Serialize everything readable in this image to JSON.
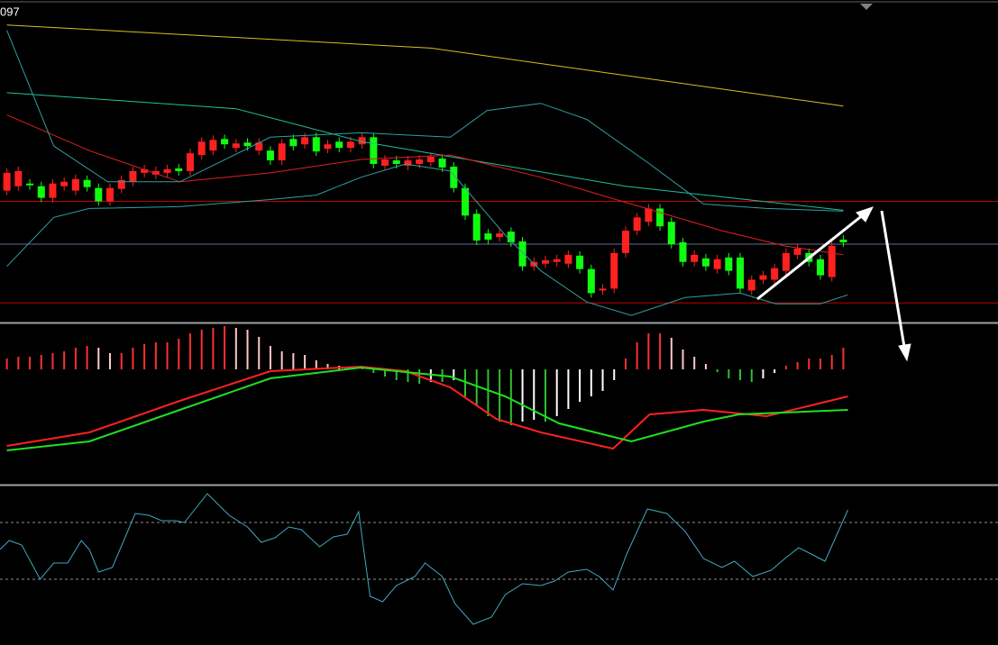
{
  "header": {
    "text": "097"
  },
  "chart_data": [
    {
      "type": "candlestick",
      "xlim": [
        -0.6,
        86.5
      ],
      "ylim": [
        43,
        400
      ],
      "up_color": "#ff2020",
      "down_color": "#10ff10",
      "open": [
        190,
        195,
        198,
        195,
        182,
        195,
        190,
        202,
        193,
        178,
        192,
        200,
        210,
        208,
        210,
        215,
        212,
        230,
        235,
        248,
        238,
        244,
        235,
        235,
        224,
        248,
        242,
        250,
        237,
        245,
        238,
        242,
        250,
        218,
        224,
        218,
        220,
        222,
        226,
        217,
        193,
        164,
        142,
        138,
        144,
        133,
        105,
        108,
        110,
        108,
        117,
        102,
        78,
        80,
        120,
        145,
        155,
        170,
        155,
        132,
        110,
        114,
        102,
        115,
        115,
        78,
        90,
        90,
        100,
        118,
        120,
        113,
        93,
        135
      ],
      "close": [
        210,
        212,
        196,
        182,
        198,
        200,
        203,
        194,
        178,
        193,
        202,
        212,
        214,
        212,
        214,
        212,
        232,
        245,
        247,
        242,
        243,
        240,
        244,
        224,
        243,
        240,
        250,
        234,
        242,
        238,
        245,
        250,
        220,
        225,
        220,
        224,
        225,
        228,
        216,
        193,
        162,
        134,
        135,
        142,
        132,
        105,
        110,
        112,
        113,
        118,
        102,
        75,
        80,
        120,
        145,
        160,
        170,
        150,
        130,
        110,
        118,
        105,
        113,
        100,
        80,
        90,
        95,
        103,
        120,
        125,
        110,
        95,
        128,
        132
      ],
      "high": [
        215,
        217,
        203,
        200,
        203,
        205,
        208,
        207,
        198,
        198,
        207,
        217,
        219,
        217,
        219,
        220,
        237,
        250,
        252,
        253,
        248,
        249,
        249,
        240,
        248,
        253,
        255,
        255,
        247,
        250,
        250,
        255,
        255,
        230,
        229,
        229,
        230,
        233,
        231,
        222,
        198,
        169,
        147,
        147,
        149,
        138,
        115,
        117,
        118,
        123,
        122,
        107,
        85,
        125,
        150,
        165,
        175,
        175,
        160,
        137,
        123,
        119,
        118,
        120,
        120,
        95,
        100,
        108,
        125,
        130,
        125,
        118,
        133,
        140
      ],
      "low": [
        185,
        190,
        191,
        177,
        177,
        190,
        185,
        189,
        173,
        173,
        187,
        195,
        205,
        203,
        205,
        207,
        207,
        225,
        230,
        237,
        233,
        235,
        230,
        219,
        219,
        235,
        237,
        229,
        232,
        233,
        233,
        237,
        215,
        213,
        215,
        213,
        215,
        217,
        211,
        188,
        157,
        129,
        130,
        133,
        127,
        100,
        100,
        103,
        105,
        103,
        97,
        70,
        73,
        75,
        115,
        140,
        150,
        145,
        125,
        105,
        105,
        100,
        97,
        95,
        75,
        73,
        85,
        85,
        95,
        113,
        105,
        90,
        88,
        127
      ],
      "series": [
        {
          "color": "#d8c020",
          "x": [
            0,
            37,
            73
          ],
          "values": [
            376,
            350,
            285
          ]
        },
        {
          "color": "#20c0a0",
          "x": [
            0,
            20,
            31,
            54,
            73
          ],
          "values": [
            300,
            282,
            245,
            195,
            168
          ]
        },
        {
          "color": "#e02020",
          "x": [
            0,
            7.2,
            15.1,
            23,
            30.9,
            38.7,
            46.6,
            54.5,
            62.4,
            67.9,
            73
          ],
          "values": [
            275,
            235,
            200,
            210,
            225,
            230,
            205,
            175,
            145,
            128,
            118
          ]
        },
        {
          "color": "#30a0a0",
          "x": [
            0,
            4.1,
            8.8,
            15.1,
            23,
            30.9,
            38.7,
            41.9,
            46.6,
            50.6,
            56.1,
            60.8,
            66.3,
            73
          ],
          "values": [
            370,
            240,
            200,
            200,
            250,
            255,
            250,
            280,
            288,
            270,
            220,
            175,
            170,
            167
          ]
        },
        {
          "color": "#30a0a0",
          "x": [
            0,
            4.1,
            7.2,
            15.1,
            23,
            27,
            30.9,
            34.8,
            38.7,
            43.5,
            46.6,
            50.6,
            54.5,
            59.2,
            64,
            67.1,
            71,
            73.4
          ],
          "values": [
            105,
            160,
            170,
            172,
            180,
            185,
            205,
            220,
            212,
            140,
            100,
            65,
            50,
            70,
            75,
            63,
            63,
            73
          ]
        }
      ],
      "reference_lines": [
        {
          "value": 178,
          "color": "#c00000"
        },
        {
          "value": 130,
          "color": "#607090"
        },
        {
          "value": 64,
          "color": "#c00000"
        }
      ]
    },
    {
      "type": "macd",
      "xlim": [
        -0.6,
        86.5
      ],
      "ylim": [
        -127,
        50
      ],
      "colors": [
        "#ff3030",
        "#ffc8c8",
        "#30c030",
        "#ffffff"
      ],
      "values": [
        12,
        14,
        14,
        16,
        18,
        20,
        24,
        26,
        24,
        18,
        18,
        24,
        28,
        30,
        30,
        34,
        40,
        44,
        46,
        48,
        46,
        44,
        36,
        26,
        20,
        18,
        16,
        10,
        6,
        4,
        2,
        4,
        -4,
        -8,
        -12,
        -14,
        -16,
        -14,
        -14,
        -12,
        -30,
        -40,
        -52,
        -58,
        -62,
        -58,
        -56,
        -58,
        -52,
        -44,
        -36,
        -30,
        -24,
        -12,
        12,
        30,
        40,
        40,
        35,
        22,
        14,
        6,
        -3,
        -10,
        -12,
        -14,
        -10,
        -4,
        4,
        8,
        12,
        12,
        16,
        24
      ],
      "series": [
        {
          "color": "#ff2020",
          "x": [
            0,
            7.2,
            15.1,
            23,
            30.9,
            34.8,
            38.7,
            42.7,
            46.6,
            52.9,
            56.1,
            60.8,
            66.3,
            70.2,
            73.4
          ],
          "values": [
            -85,
            -70,
            -35,
            -2,
            3,
            -2,
            -20,
            -55,
            -70,
            -88,
            -50,
            -45,
            -52,
            -40,
            -30
          ]
        },
        {
          "color": "#20e020",
          "x": [
            0,
            7.2,
            15.1,
            23,
            30.9,
            38.7,
            43.5,
            48.2,
            54.5,
            60.8,
            63.9,
            73.4
          ],
          "values": [
            -90,
            -80,
            -45,
            -10,
            2,
            -8,
            -30,
            -60,
            -80,
            -58,
            -50,
            -45
          ]
        }
      ]
    },
    {
      "type": "line",
      "xlim": [
        -0.6,
        86.5
      ],
      "ylim": [
        0,
        176
      ],
      "series": [
        {
          "color": "#40a8c0",
          "x": [
            -0.6,
            0.2,
            1.3,
            2.9,
            4.1,
            5.3,
            6.5,
            7.2,
            8.0,
            9.2,
            11.2,
            12.4,
            13.5,
            14.7,
            15.5,
            17.5,
            19.4,
            21.0,
            22.2,
            23.4,
            24.6,
            25.7,
            27.3,
            28.5,
            29.7,
            30.7,
            31.7,
            32.8,
            34.0,
            35.6,
            36.5,
            38.0,
            39.1,
            40.7,
            42.3,
            43.5,
            45.0,
            46.6,
            47.8,
            49.0,
            50.6,
            51.7,
            52.9,
            54.1,
            55.9,
            57.6,
            59.2,
            60.8,
            62.4,
            63.5,
            65.1,
            66.7,
            67.9,
            69.1,
            70.2,
            71.4,
            73.4
          ],
          "values": [
            106,
            116,
            111,
            73,
            91,
            91,
            116,
            106,
            81,
            86,
            146,
            144,
            138,
            138,
            136,
            168,
            144,
            131,
            114,
            119,
            131,
            128,
            109,
            120,
            123,
            148,
            54,
            48,
            66,
            76,
            91,
            76,
            46,
            23,
            31,
            56,
            68,
            66,
            71,
            81,
            84,
            76,
            61,
            101,
            151,
            146,
            126,
            96,
            86,
            93,
            76,
            83,
            96,
            108,
            101,
            93,
            150
          ]
        }
      ],
      "reference_lines": [
        {
          "value": 136,
          "color": "#909090",
          "dashed": true
        },
        {
          "value": 73,
          "color": "#909090",
          "dashed": true
        }
      ]
    }
  ]
}
